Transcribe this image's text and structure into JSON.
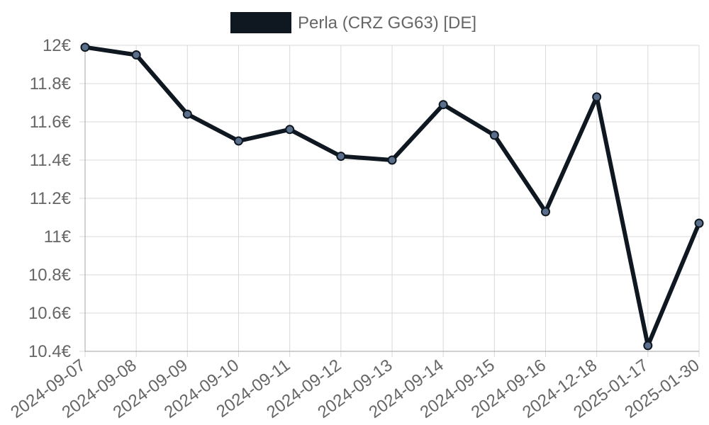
{
  "chart_data": {
    "type": "line",
    "categories": [
      "2024-09-07",
      "2024-09-08",
      "2024-09-09",
      "2024-09-10",
      "2024-09-11",
      "2024-09-12",
      "2024-09-13",
      "2024-09-14",
      "2024-09-15",
      "2024-09-16",
      "2024-12-18",
      "2025-01-17",
      "2025-01-30"
    ],
    "series": [
      {
        "name": "Perla (CRZ GG63) [DE]",
        "values": [
          11.99,
          11.95,
          11.64,
          11.5,
          11.56,
          11.42,
          11.4,
          11.69,
          11.53,
          11.13,
          11.73,
          10.43,
          11.07
        ]
      }
    ],
    "yticks": [
      "12€",
      "11.8€",
      "11.6€",
      "11.4€",
      "11.2€",
      "11€",
      "10.8€",
      "10.6€",
      "10.4€"
    ],
    "ylim": [
      10.4,
      12
    ],
    "grid": true,
    "legend": "top-center",
    "colors": {
      "line": "#0f1721",
      "point_fill": "#5a6f8c",
      "grid": "#d9d9d9",
      "axis": "#b3b3b3",
      "text": "#666666"
    }
  }
}
